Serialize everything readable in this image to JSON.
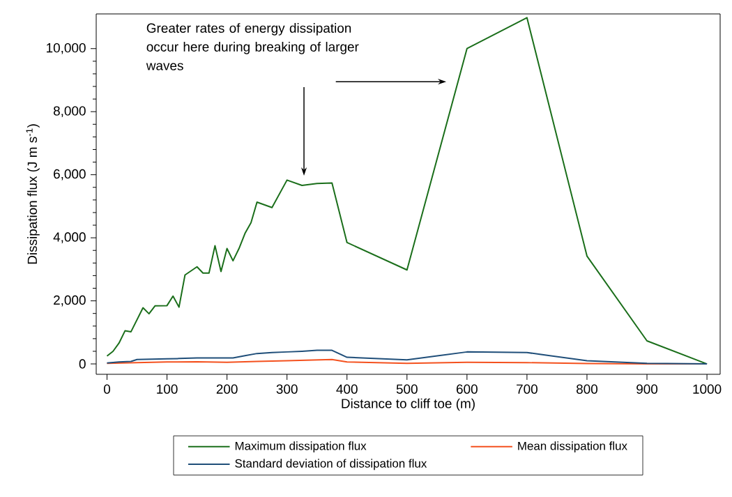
{
  "chart_data": {
    "type": "line",
    "xlabel": "Distance to cliff toe (m)",
    "ylabel": "Dissipation flux (J m s$^{-1}$)",
    "xlim": [
      -18,
      1022
    ],
    "ylim": [
      -330,
      11100
    ],
    "xticks": [
      0,
      100,
      200,
      300,
      400,
      500,
      600,
      700,
      800,
      900,
      1000
    ],
    "yticks": [
      0,
      {
        "value": 2000,
        "label": "2,000"
      },
      {
        "value": 4000,
        "label": "4,000"
      },
      {
        "value": 6000,
        "label": "6,000"
      },
      {
        "value": 8000,
        "label": "8,000"
      },
      {
        "value": 10000,
        "label": "10,000"
      }
    ],
    "grid": false,
    "legend": "bottom",
    "marker": "none",
    "line_style": "solid",
    "annotations": [
      "Greater rates of energy dissipation occur here during breaking of larger waves"
    ],
    "series": [
      {
        "name": "Maximum dissipation flux",
        "color": "#1a6e1a",
        "x": [
          0,
          10,
          20,
          30,
          40,
          60,
          70,
          80,
          100,
          110,
          120,
          130,
          150,
          160,
          170,
          180,
          190,
          200,
          210,
          220,
          230,
          240,
          250,
          275,
          300,
          325,
          350,
          375,
          400,
          500,
          600,
          700,
          800,
          900,
          1000
        ],
        "values": [
          250,
          400,
          660,
          1050,
          1020,
          1780,
          1590,
          1840,
          1850,
          2150,
          1800,
          2820,
          3080,
          2880,
          2880,
          3750,
          2930,
          3660,
          3270,
          3660,
          4140,
          4480,
          5130,
          4960,
          5830,
          5660,
          5720,
          5740,
          3850,
          2980,
          10000,
          10980,
          3420,
          730,
          0
        ]
      },
      {
        "name": "Mean dissipation flux",
        "color": "#f4511e",
        "x": [
          0,
          50,
          100,
          150,
          200,
          250,
          300,
          375,
          400,
          500,
          600,
          700,
          800,
          900,
          1000
        ],
        "values": [
          20,
          40,
          60,
          70,
          50,
          80,
          100,
          140,
          60,
          20,
          50,
          40,
          10,
          0,
          0
        ]
      },
      {
        "name": "Standard deviation of dissipation flux",
        "color": "#1f4e79",
        "x": [
          0,
          20,
          40,
          50,
          100,
          120,
          150,
          210,
          230,
          250,
          275,
          300,
          325,
          350,
          375,
          400,
          500,
          600,
          700,
          800,
          900,
          1000
        ],
        "values": [
          30,
          60,
          80,
          140,
          160,
          170,
          190,
          190,
          260,
          330,
          360,
          380,
          400,
          430,
          430,
          210,
          130,
          380,
          360,
          100,
          20,
          0
        ]
      }
    ]
  }
}
